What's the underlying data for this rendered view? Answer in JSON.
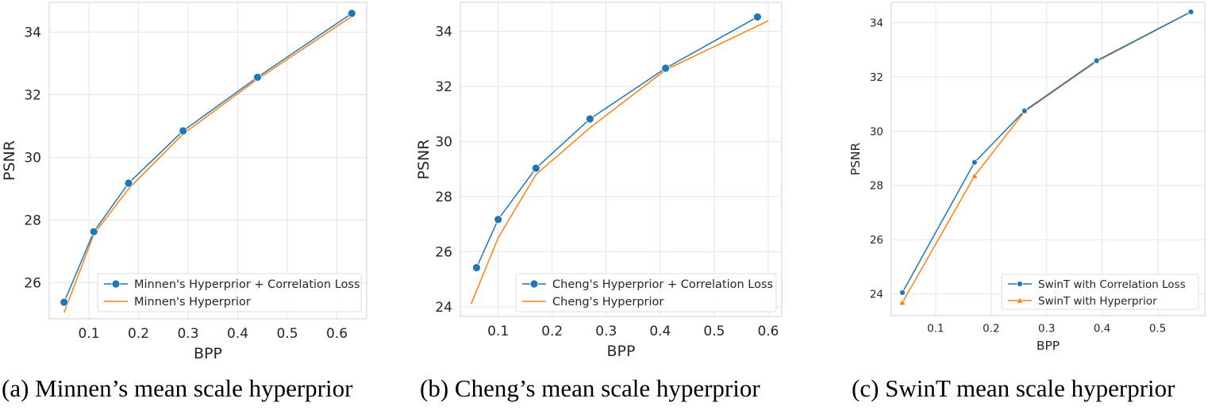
{
  "captions": [
    "(a) Minnen’s mean scale hyperprior",
    "(b) Cheng’s mean scale hyperprior",
    "(c) SwinT mean scale hyperprior"
  ],
  "colors": {
    "blue": "#1f77b4",
    "orange": "#ff7f0e",
    "grid": "#e5e5e5",
    "spine": "#d0d0d0"
  },
  "chart_data": [
    {
      "type": "line",
      "xlabel": "BPP",
      "ylabel": "PSNR",
      "xlim": [
        0.02,
        0.66
      ],
      "ylim": [
        24.85,
        34.95
      ],
      "xticks": [
        0.1,
        0.2,
        0.3,
        0.4,
        0.5,
        0.6
      ],
      "xtick_labels": [
        "0.1",
        "0.2",
        "0.3",
        "0.4",
        "0.5",
        "0.6"
      ],
      "yticks": [
        26,
        28,
        30,
        32,
        34
      ],
      "ytick_labels": [
        "26",
        "28",
        "30",
        "32",
        "34"
      ],
      "grid": true,
      "legend_position": "bottom-right",
      "series": [
        {
          "name": "Minnen's Hyperprior + Correlation Loss",
          "color": "#1f77b4",
          "marker": "circle",
          "x": [
            0.05,
            0.11,
            0.18,
            0.29,
            0.44,
            0.63
          ],
          "y": [
            25.38,
            27.63,
            29.18,
            30.85,
            32.56,
            34.6
          ]
        },
        {
          "name": "Minnen's Hyperprior",
          "color": "#ff7f0e",
          "marker": "none",
          "x": [
            0.05,
            0.11,
            0.18,
            0.29,
            0.44,
            0.63
          ],
          "y": [
            25.05,
            27.55,
            29.0,
            30.75,
            32.5,
            34.5
          ]
        }
      ]
    },
    {
      "type": "line",
      "xlabel": "BPP",
      "ylabel": "PSNR",
      "xlim": [
        0.03,
        0.625
      ],
      "ylim": [
        23.65,
        35.05
      ],
      "xticks": [
        0.1,
        0.2,
        0.3,
        0.4,
        0.5,
        0.6
      ],
      "xtick_labels": [
        "0.1",
        "0.2",
        "0.3",
        "0.4",
        "0.5",
        "0.6"
      ],
      "yticks": [
        24,
        26,
        28,
        30,
        32,
        34
      ],
      "ytick_labels": [
        "24",
        "26",
        "28",
        "30",
        "32",
        "34"
      ],
      "grid": true,
      "legend_position": "bottom-right",
      "series": [
        {
          "name": "Cheng's Hyperprior + Correlation Loss",
          "color": "#1f77b4",
          "marker": "circle",
          "x": [
            0.06,
            0.1,
            0.17,
            0.27,
            0.41,
            0.58
          ],
          "y": [
            25.42,
            27.17,
            29.03,
            30.82,
            32.66,
            34.52
          ]
        },
        {
          "name": "Cheng's Hyperprior",
          "color": "#ff7f0e",
          "marker": "none",
          "x": [
            0.05,
            0.1,
            0.17,
            0.27,
            0.41,
            0.6
          ],
          "y": [
            24.1,
            26.5,
            28.8,
            30.5,
            32.6,
            34.38
          ]
        }
      ]
    },
    {
      "type": "line",
      "xlabel": "BPP",
      "ylabel": "PSNR",
      "xlim": [
        0.02,
        0.585
      ],
      "ylim": [
        23.2,
        34.75
      ],
      "xticks": [
        0.1,
        0.2,
        0.3,
        0.4,
        0.5
      ],
      "xtick_labels": [
        "0.1",
        "0.2",
        "0.3",
        "0.4",
        "0.5"
      ],
      "yticks": [
        24,
        26,
        28,
        30,
        32,
        34
      ],
      "ytick_labels": [
        "24",
        "26",
        "28",
        "30",
        "32",
        "34"
      ],
      "grid": true,
      "legend_position": "bottom-right",
      "series": [
        {
          "name": "SwinT with Correlation Loss",
          "color": "#1f77b4",
          "marker": "circle",
          "x": [
            0.04,
            0.17,
            0.26,
            0.39,
            0.56
          ],
          "y": [
            24.05,
            28.85,
            30.75,
            32.6,
            34.4
          ]
        },
        {
          "name": "SwinT with Hyperprior",
          "color": "#ff7f0e",
          "marker": "triangle",
          "x": [
            0.04,
            0.17,
            0.26,
            0.39,
            0.56
          ],
          "y": [
            23.68,
            28.35,
            30.72,
            32.57,
            34.4
          ]
        }
      ]
    }
  ]
}
